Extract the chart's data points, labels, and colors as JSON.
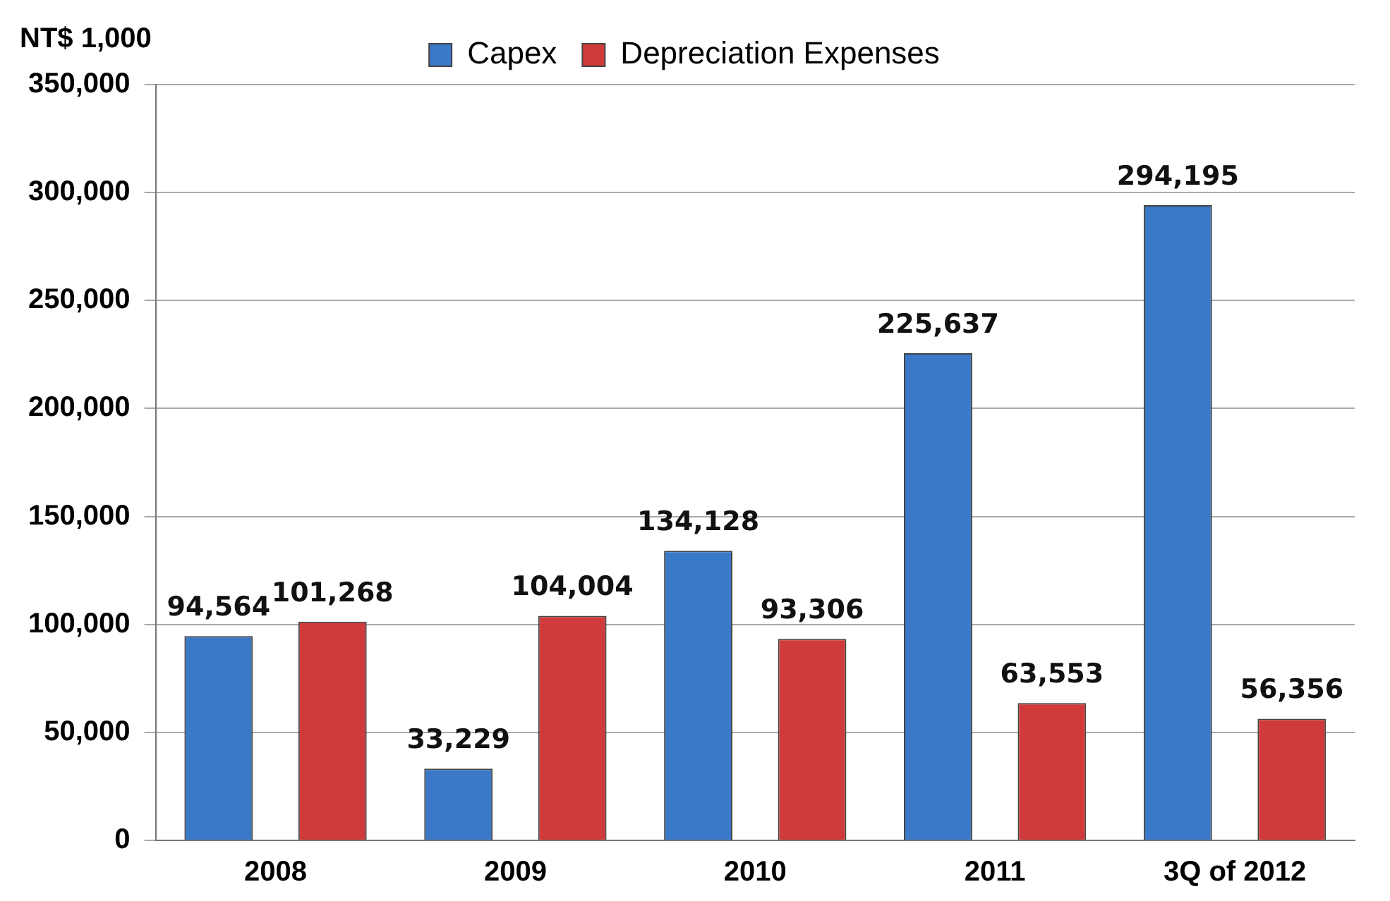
{
  "chart_data": {
    "type": "bar",
    "ylabel": "NT$ 1,000",
    "categories": [
      "2008",
      "2009",
      "2010",
      "2011",
      "3Q of 2012"
    ],
    "series": [
      {
        "name": "Capex",
        "color": "#3a78c8",
        "values": [
          94564,
          33229,
          134128,
          225637,
          294195
        ],
        "value_labels": [
          "94,564",
          "33,229",
          "134,128",
          "225,637",
          "294,195"
        ]
      },
      {
        "name": "Depreciation Expenses",
        "color": "#d03a3a",
        "values": [
          101268,
          104004,
          93306,
          63553,
          56356
        ],
        "value_labels": [
          "101,268",
          "104,004",
          "93,306",
          "63,553",
          "56,356"
        ]
      }
    ],
    "ylim": [
      0,
      350000
    ],
    "yticks": [
      0,
      {
        "value": 50000,
        "label": "50,000"
      },
      {
        "value": 100000,
        "label": "100,000"
      },
      {
        "value": 150000,
        "label": "150,000"
      },
      {
        "value": 200000,
        "label": "200,000"
      },
      {
        "value": 250000,
        "label": "250,000"
      },
      {
        "value": 300000,
        "label": "300,000"
      },
      {
        "value": 350000,
        "label": "350,000"
      }
    ],
    "grid": "y",
    "legend": "top"
  }
}
